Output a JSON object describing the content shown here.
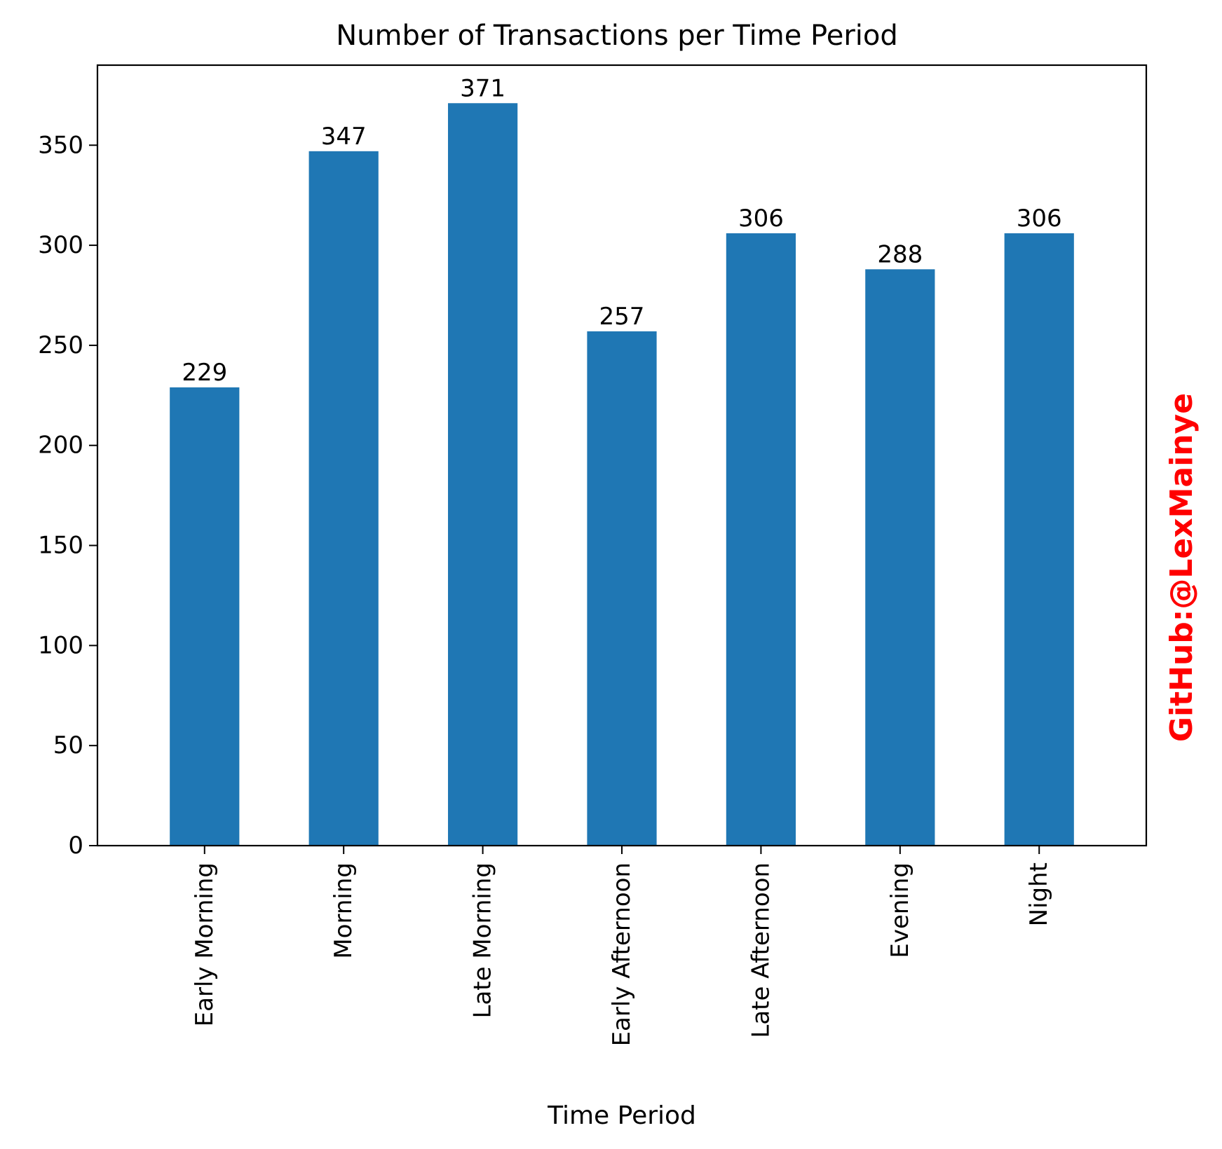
{
  "chart_data": {
    "type": "bar",
    "title": "Number of Transactions per Time Period",
    "xlabel": "Time Period",
    "ylabel": "",
    "categories": [
      "Early Morning",
      "Morning",
      "Late Morning",
      "Early Afternoon",
      "Late Afternoon",
      "Evening",
      "Night"
    ],
    "values": [
      229,
      347,
      371,
      257,
      306,
      288,
      306
    ],
    "data_labels": [
      "229",
      "347",
      "371",
      "257",
      "306",
      "288",
      "306"
    ],
    "ylim": [
      0,
      390
    ],
    "yticks": [
      0,
      50,
      100,
      150,
      200,
      250,
      300,
      350
    ],
    "ytick_labels": [
      "0",
      "50",
      "100",
      "150",
      "200",
      "250",
      "300",
      "350"
    ],
    "grid": false,
    "legend": "none",
    "bar_color": "#1f77b4"
  },
  "watermark": {
    "text": "GitHub:@LexMainye",
    "color": "#ff0000"
  }
}
